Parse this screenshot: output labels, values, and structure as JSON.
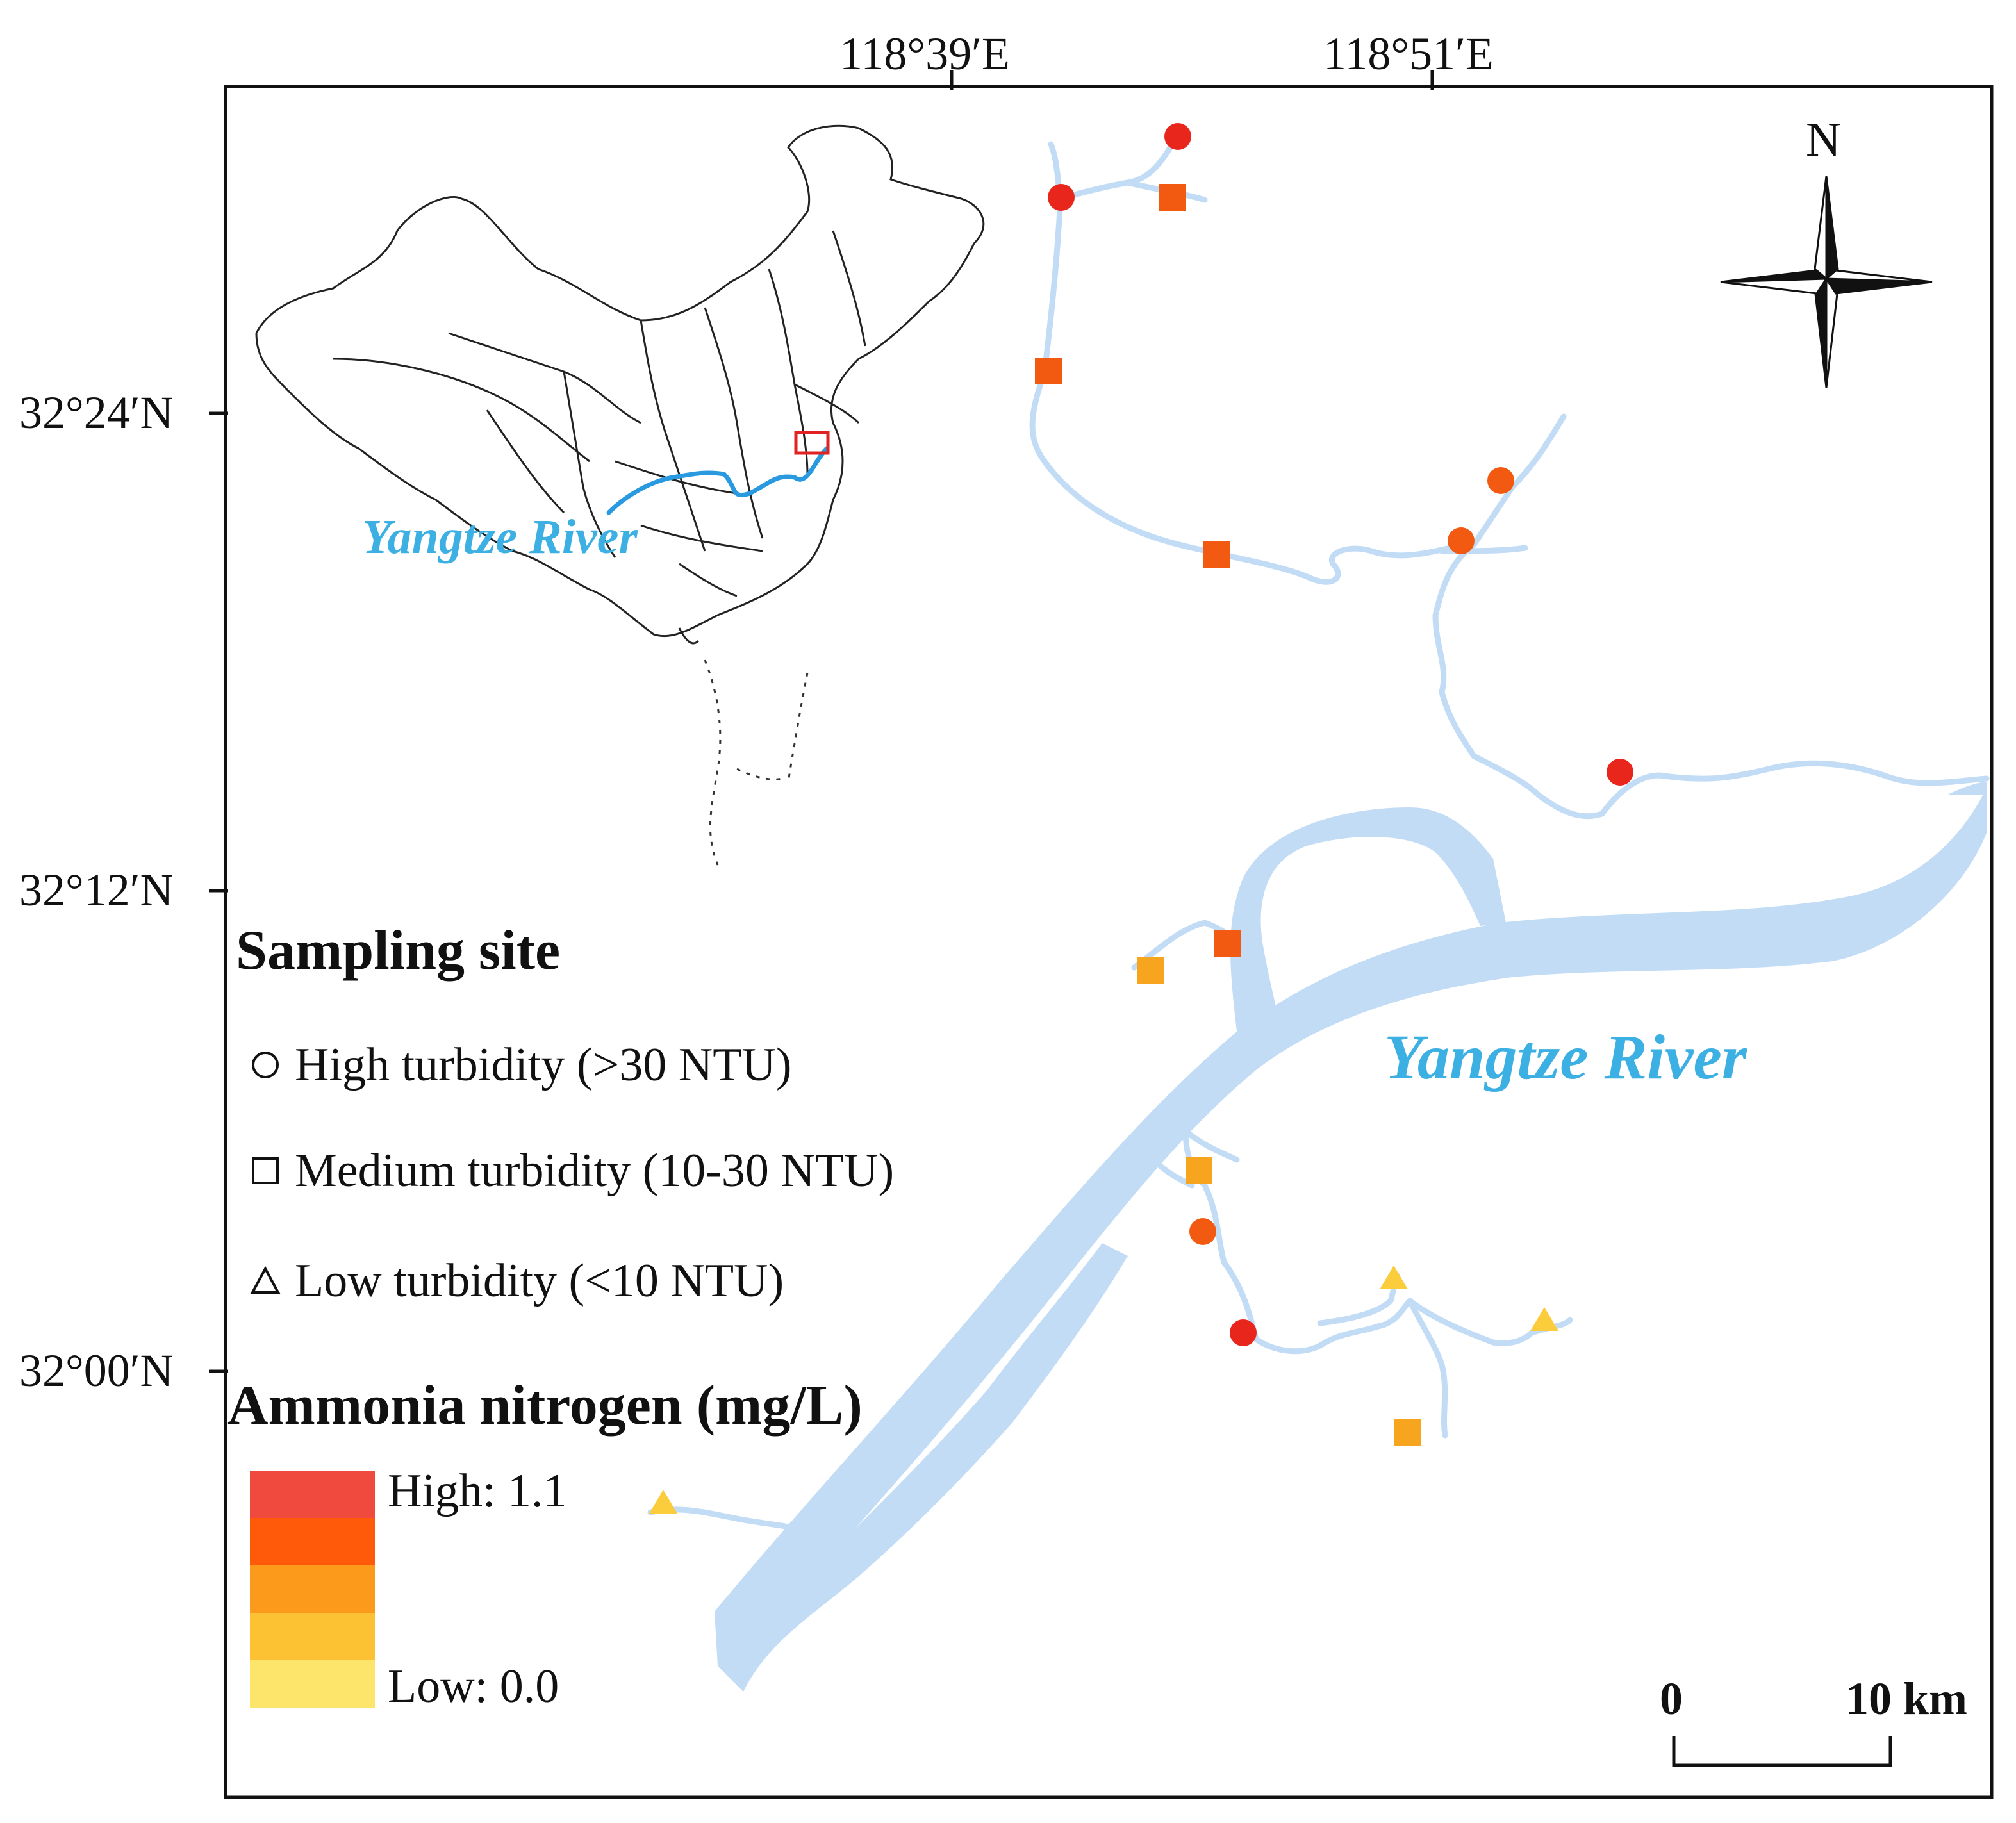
{
  "map": {
    "lon_labels": [
      "118°39′E",
      "118°51′E"
    ],
    "lat_labels": [
      "32°24′N",
      "32°12′N",
      "32°00′N"
    ],
    "north_label": "N",
    "river_label": "Yangtze River",
    "inset_river_label": "Yangtze River"
  },
  "legend": {
    "sampling_title": "Sampling site",
    "items": [
      {
        "shape": "circle",
        "label": "High turbidity (>30 NTU)"
      },
      {
        "shape": "square",
        "label": "Medium turbidity (10-30 NTU)"
      },
      {
        "shape": "triangle",
        "label": "Low turbidity (<10 NTU)"
      }
    ],
    "ammonia_title": "Ammonia nitrogen (mg/L)",
    "ramp_high_label": "High: 1.1",
    "ramp_low_label": "Low: 0.0",
    "ramp_colors": [
      "#ef4a3d",
      "#fe5a0a",
      "#fc9a1c",
      "#fdc234",
      "#fde46a"
    ]
  },
  "scale_bar": {
    "zero_label": "0",
    "end_label": "10 km"
  },
  "colors": {
    "river": "#c3dcf6",
    "inset_river": "#2a9ae0",
    "high_site": "#e8261b",
    "medium_high_site": "#f25a12",
    "medium_site": "#f7a41f",
    "low_site": "#fbcd3c",
    "study_area_box": "#e02222"
  }
}
